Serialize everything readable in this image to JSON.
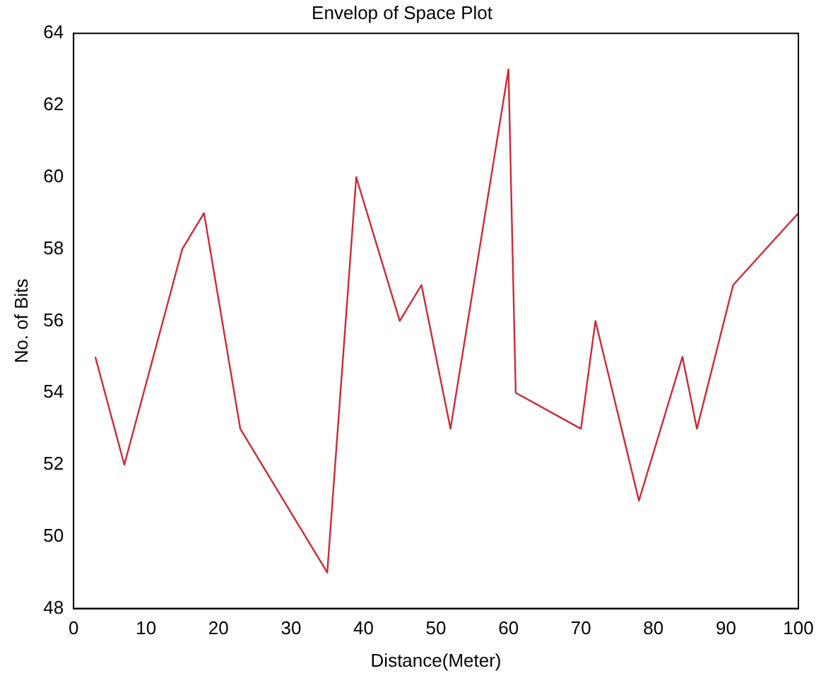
{
  "chart_data": {
    "type": "line",
    "title": "Envelop of Space Plot",
    "xlabel": "Distance(Meter)",
    "ylabel": "No. of Bits",
    "x": [
      3,
      7,
      15,
      18,
      23,
      35,
      39,
      45,
      48,
      52,
      60,
      61,
      70,
      72,
      78,
      84,
      86,
      91,
      100
    ],
    "series": [
      {
        "color": "#cc2a36",
        "values": [
          55,
          52,
          58,
          59,
          53,
          49,
          60,
          56,
          57,
          53,
          63,
          54,
          53,
          56,
          51,
          55,
          53,
          57,
          59
        ]
      }
    ],
    "xlim": [
      0,
      100
    ],
    "xticks": [
      0,
      10,
      20,
      30,
      40,
      50,
      60,
      70,
      80,
      90,
      100
    ],
    "ylim": [
      48,
      64
    ],
    "yticks": [
      48,
      50,
      52,
      54,
      56,
      58,
      60,
      62,
      64
    ],
    "grid": false,
    "legend": false,
    "marker": "none",
    "line_style": "solid"
  }
}
